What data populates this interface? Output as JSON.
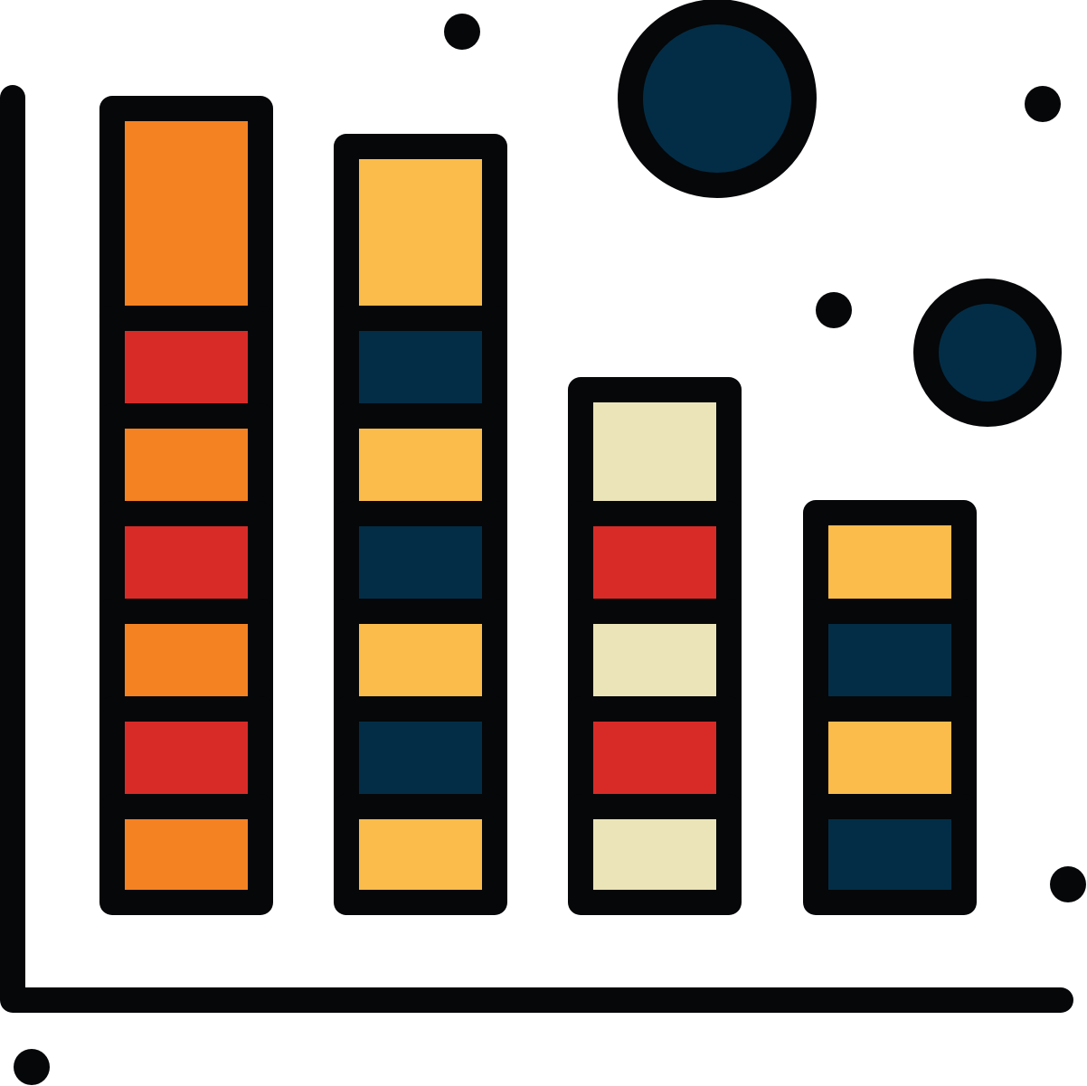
{
  "icon": {
    "name": "stacked-bar-chart-icon",
    "colors": {
      "outline": "#050709",
      "background": "#ffffff",
      "orange": "#F48222",
      "red": "#D82B28",
      "yellow": "#FBBC4C",
      "navy": "#032D46",
      "cream": "#EBE4B8"
    },
    "columns": [
      {
        "name": "column-1",
        "segments": [
          "orange",
          "red",
          "orange",
          "red",
          "orange",
          "red",
          "orange"
        ]
      },
      {
        "name": "column-2",
        "segments": [
          "yellow",
          "navy",
          "yellow",
          "navy",
          "yellow",
          "navy",
          "yellow"
        ]
      },
      {
        "name": "column-3",
        "segments": [
          "cream",
          "red",
          "cream",
          "red",
          "cream"
        ]
      },
      {
        "name": "column-4",
        "segments": [
          "yellow",
          "navy",
          "yellow",
          "navy"
        ]
      }
    ],
    "circles": [
      {
        "name": "large-circle",
        "fill": "navy"
      },
      {
        "name": "medium-circle",
        "fill": "navy"
      }
    ]
  }
}
